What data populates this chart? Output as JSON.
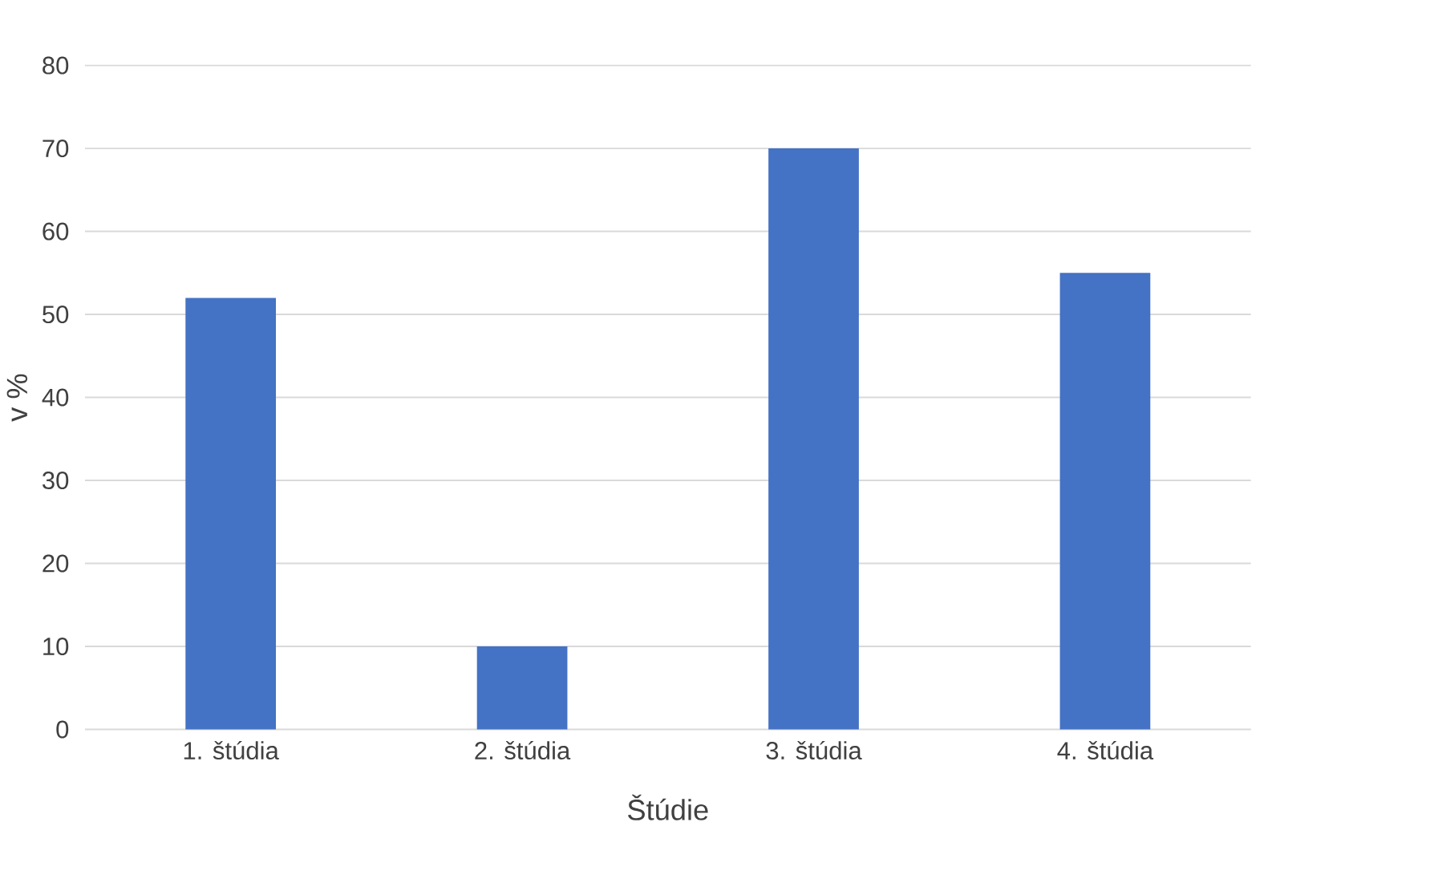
{
  "chart_data": {
    "type": "bar",
    "xlabel": "Štúdie",
    "ylabel": "v %",
    "categories": [
      "1. štúdia",
      "2. štúdia",
      "3. štúdia",
      "4. štúdia"
    ],
    "values": [
      52,
      10,
      70,
      55
    ],
    "color": "#4472c4",
    "ylim": [
      0,
      80
    ],
    "yticks": [
      0,
      10,
      20,
      30,
      40,
      50,
      60,
      70,
      80
    ],
    "grid": "y"
  }
}
